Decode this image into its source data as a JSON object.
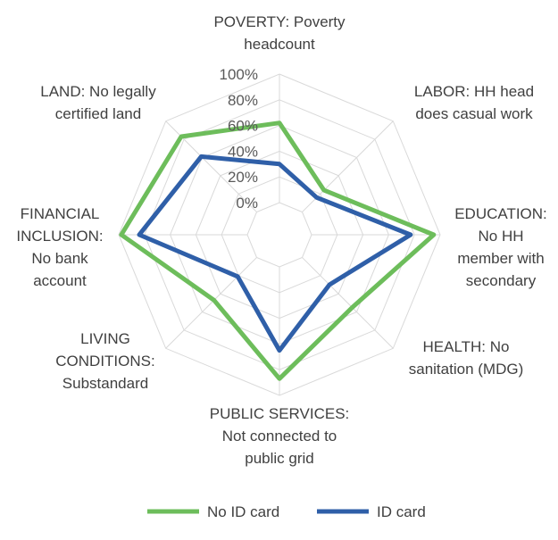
{
  "chart_data": {
    "type": "radar",
    "title": "",
    "axes": [
      [
        "POVERTY: Poverty",
        "headcount"
      ],
      [
        "LABOR: HH head",
        "does casual work"
      ],
      [
        "EDUCATION:",
        "No HH",
        "member with",
        "secondary"
      ],
      [
        "HEALTH: No",
        "sanitation (MDG)"
      ],
      [
        "PUBLIC SERVICES:",
        "Not connected to",
        "public grid"
      ],
      [
        "LIVING",
        "CONDITIONS:",
        "Substandard"
      ],
      [
        "FINANCIAL",
        "INCLUSION:",
        "No bank",
        "account"
      ],
      [
        "LAND: No legally",
        "certified land"
      ]
    ],
    "ticks": [
      "0%",
      "20%",
      "40%",
      "60%",
      "80%",
      "100%"
    ],
    "rlim": [
      0,
      100
    ],
    "grid": true,
    "legend": "bottom",
    "series": [
      {
        "name": "No ID card",
        "color": "#6dbd5b",
        "values": [
          62,
          24,
          95,
          55,
          87,
          47,
          98,
          83
        ]
      },
      {
        "name": "ID card",
        "color": "#2f5fa8",
        "values": [
          30,
          16,
          77,
          30,
          65,
          21,
          84,
          61
        ]
      }
    ]
  }
}
